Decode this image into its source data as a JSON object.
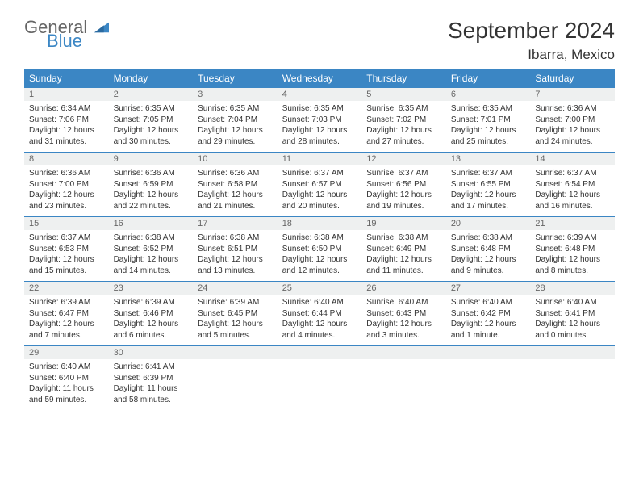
{
  "brand": {
    "part1": "General",
    "part2": "Blue"
  },
  "title": "September 2024",
  "location": "Ibarra, Mexico",
  "colors": {
    "header_bg": "#3b86c4",
    "header_text": "#ffffff",
    "daynum_bg": "#eef0f0",
    "daynum_text": "#666666",
    "body_text": "#333333",
    "border": "#3b86c4",
    "page_bg": "#ffffff"
  },
  "day_headers": [
    "Sunday",
    "Monday",
    "Tuesday",
    "Wednesday",
    "Thursday",
    "Friday",
    "Saturday"
  ],
  "weeks": [
    [
      {
        "n": "1",
        "sr": "Sunrise: 6:34 AM",
        "ss": "Sunset: 7:06 PM",
        "d1": "Daylight: 12 hours",
        "d2": "and 31 minutes."
      },
      {
        "n": "2",
        "sr": "Sunrise: 6:35 AM",
        "ss": "Sunset: 7:05 PM",
        "d1": "Daylight: 12 hours",
        "d2": "and 30 minutes."
      },
      {
        "n": "3",
        "sr": "Sunrise: 6:35 AM",
        "ss": "Sunset: 7:04 PM",
        "d1": "Daylight: 12 hours",
        "d2": "and 29 minutes."
      },
      {
        "n": "4",
        "sr": "Sunrise: 6:35 AM",
        "ss": "Sunset: 7:03 PM",
        "d1": "Daylight: 12 hours",
        "d2": "and 28 minutes."
      },
      {
        "n": "5",
        "sr": "Sunrise: 6:35 AM",
        "ss": "Sunset: 7:02 PM",
        "d1": "Daylight: 12 hours",
        "d2": "and 27 minutes."
      },
      {
        "n": "6",
        "sr": "Sunrise: 6:35 AM",
        "ss": "Sunset: 7:01 PM",
        "d1": "Daylight: 12 hours",
        "d2": "and 25 minutes."
      },
      {
        "n": "7",
        "sr": "Sunrise: 6:36 AM",
        "ss": "Sunset: 7:00 PM",
        "d1": "Daylight: 12 hours",
        "d2": "and 24 minutes."
      }
    ],
    [
      {
        "n": "8",
        "sr": "Sunrise: 6:36 AM",
        "ss": "Sunset: 7:00 PM",
        "d1": "Daylight: 12 hours",
        "d2": "and 23 minutes."
      },
      {
        "n": "9",
        "sr": "Sunrise: 6:36 AM",
        "ss": "Sunset: 6:59 PM",
        "d1": "Daylight: 12 hours",
        "d2": "and 22 minutes."
      },
      {
        "n": "10",
        "sr": "Sunrise: 6:36 AM",
        "ss": "Sunset: 6:58 PM",
        "d1": "Daylight: 12 hours",
        "d2": "and 21 minutes."
      },
      {
        "n": "11",
        "sr": "Sunrise: 6:37 AM",
        "ss": "Sunset: 6:57 PM",
        "d1": "Daylight: 12 hours",
        "d2": "and 20 minutes."
      },
      {
        "n": "12",
        "sr": "Sunrise: 6:37 AM",
        "ss": "Sunset: 6:56 PM",
        "d1": "Daylight: 12 hours",
        "d2": "and 19 minutes."
      },
      {
        "n": "13",
        "sr": "Sunrise: 6:37 AM",
        "ss": "Sunset: 6:55 PM",
        "d1": "Daylight: 12 hours",
        "d2": "and 17 minutes."
      },
      {
        "n": "14",
        "sr": "Sunrise: 6:37 AM",
        "ss": "Sunset: 6:54 PM",
        "d1": "Daylight: 12 hours",
        "d2": "and 16 minutes."
      }
    ],
    [
      {
        "n": "15",
        "sr": "Sunrise: 6:37 AM",
        "ss": "Sunset: 6:53 PM",
        "d1": "Daylight: 12 hours",
        "d2": "and 15 minutes."
      },
      {
        "n": "16",
        "sr": "Sunrise: 6:38 AM",
        "ss": "Sunset: 6:52 PM",
        "d1": "Daylight: 12 hours",
        "d2": "and 14 minutes."
      },
      {
        "n": "17",
        "sr": "Sunrise: 6:38 AM",
        "ss": "Sunset: 6:51 PM",
        "d1": "Daylight: 12 hours",
        "d2": "and 13 minutes."
      },
      {
        "n": "18",
        "sr": "Sunrise: 6:38 AM",
        "ss": "Sunset: 6:50 PM",
        "d1": "Daylight: 12 hours",
        "d2": "and 12 minutes."
      },
      {
        "n": "19",
        "sr": "Sunrise: 6:38 AM",
        "ss": "Sunset: 6:49 PM",
        "d1": "Daylight: 12 hours",
        "d2": "and 11 minutes."
      },
      {
        "n": "20",
        "sr": "Sunrise: 6:38 AM",
        "ss": "Sunset: 6:48 PM",
        "d1": "Daylight: 12 hours",
        "d2": "and 9 minutes."
      },
      {
        "n": "21",
        "sr": "Sunrise: 6:39 AM",
        "ss": "Sunset: 6:48 PM",
        "d1": "Daylight: 12 hours",
        "d2": "and 8 minutes."
      }
    ],
    [
      {
        "n": "22",
        "sr": "Sunrise: 6:39 AM",
        "ss": "Sunset: 6:47 PM",
        "d1": "Daylight: 12 hours",
        "d2": "and 7 minutes."
      },
      {
        "n": "23",
        "sr": "Sunrise: 6:39 AM",
        "ss": "Sunset: 6:46 PM",
        "d1": "Daylight: 12 hours",
        "d2": "and 6 minutes."
      },
      {
        "n": "24",
        "sr": "Sunrise: 6:39 AM",
        "ss": "Sunset: 6:45 PM",
        "d1": "Daylight: 12 hours",
        "d2": "and 5 minutes."
      },
      {
        "n": "25",
        "sr": "Sunrise: 6:40 AM",
        "ss": "Sunset: 6:44 PM",
        "d1": "Daylight: 12 hours",
        "d2": "and 4 minutes."
      },
      {
        "n": "26",
        "sr": "Sunrise: 6:40 AM",
        "ss": "Sunset: 6:43 PM",
        "d1": "Daylight: 12 hours",
        "d2": "and 3 minutes."
      },
      {
        "n": "27",
        "sr": "Sunrise: 6:40 AM",
        "ss": "Sunset: 6:42 PM",
        "d1": "Daylight: 12 hours",
        "d2": "and 1 minute."
      },
      {
        "n": "28",
        "sr": "Sunrise: 6:40 AM",
        "ss": "Sunset: 6:41 PM",
        "d1": "Daylight: 12 hours",
        "d2": "and 0 minutes."
      }
    ],
    [
      {
        "n": "29",
        "sr": "Sunrise: 6:40 AM",
        "ss": "Sunset: 6:40 PM",
        "d1": "Daylight: 11 hours",
        "d2": "and 59 minutes."
      },
      {
        "n": "30",
        "sr": "Sunrise: 6:41 AM",
        "ss": "Sunset: 6:39 PM",
        "d1": "Daylight: 11 hours",
        "d2": "and 58 minutes."
      },
      null,
      null,
      null,
      null,
      null
    ]
  ]
}
